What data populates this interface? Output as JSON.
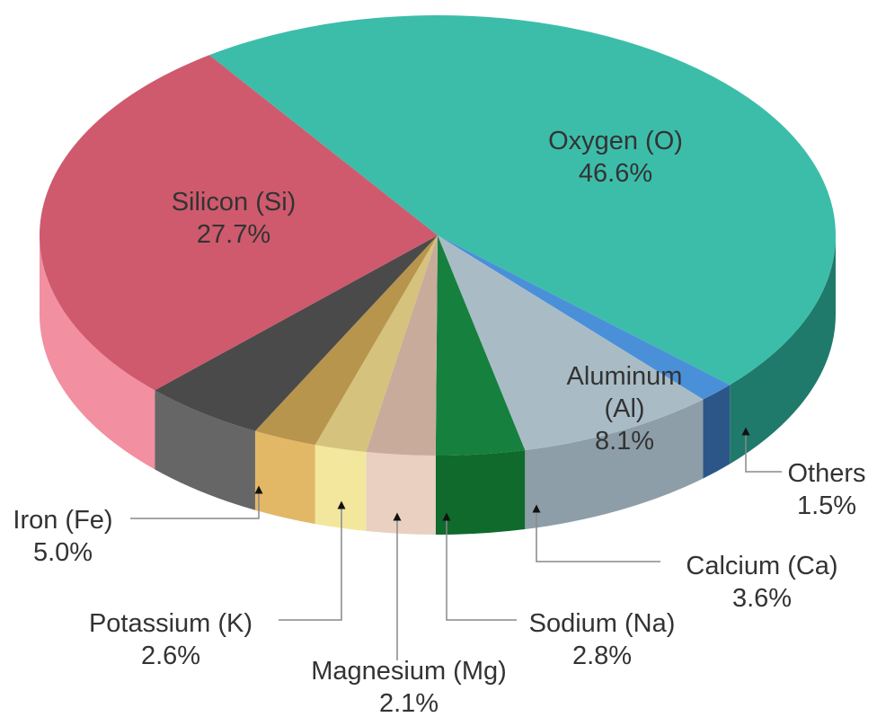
{
  "chart_data": {
    "type": "pie3d",
    "categories": [
      "Oxygen (O)",
      "Others",
      "Aluminum (Al)",
      "Calcium (Ca)",
      "Sodium (Na)",
      "Magnesium (Mg)",
      "Potassium (K)",
      "Iron (Fe)",
      "Silicon (Si)"
    ],
    "values": [
      46.6,
      1.5,
      8.1,
      3.6,
      2.8,
      2.1,
      2.6,
      5.0,
      27.7
    ],
    "value_labels": [
      "46.6%",
      "1.5%",
      "8.1%",
      "3.6%",
      "2.8%",
      "2.1%",
      "2.6%",
      "5.0%",
      "27.7%"
    ],
    "colors": [
      "#3cbdaa",
      "#4a90d9",
      "#a9bcc6",
      "#16803e",
      "#c8ab9b",
      "#d5c27c",
      "#b8954c",
      "#4a4a4a",
      "#cf5a6d"
    ],
    "side_colors": [
      "#1f7a6b",
      "#2d5688",
      "#8d9ea8",
      "#0f6a2c",
      "#e9d0c1",
      "#f3e79d",
      "#e2b867",
      "#666666",
      "#f28fa1"
    ]
  }
}
